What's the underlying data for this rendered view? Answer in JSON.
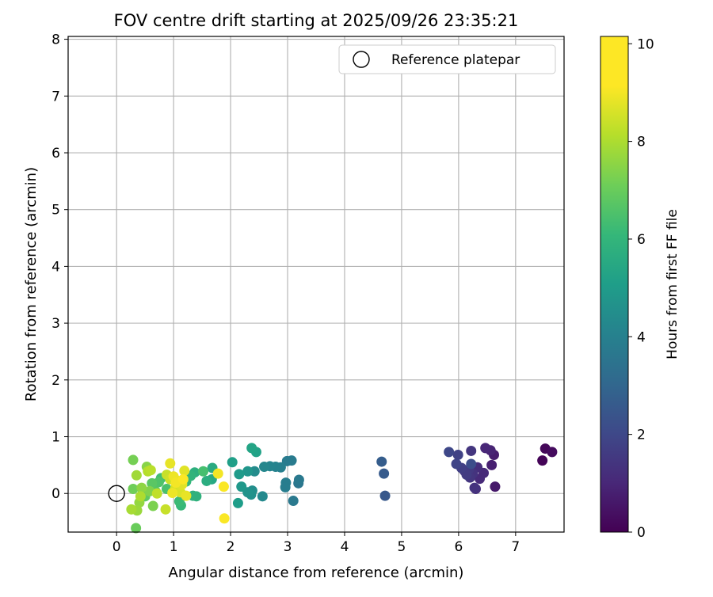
{
  "chart_data": {
    "type": "scatter",
    "title": "FOV centre drift starting at 2025/09/26 23:35:21",
    "xlabel": "Angular distance from reference (arcmin)",
    "ylabel": "Rotation from reference (arcmin)",
    "xlim": [
      -0.85,
      7.85
    ],
    "ylim": [
      -0.68,
      8.05
    ],
    "x_ticks": [
      0,
      1,
      2,
      3,
      4,
      5,
      6,
      7
    ],
    "y_ticks": [
      0,
      1,
      2,
      3,
      4,
      5,
      6,
      7,
      8
    ],
    "grid": true,
    "legend": {
      "placement": "top-right",
      "entries": [
        {
          "label": "Reference platepar",
          "marker": "open-circle"
        }
      ]
    },
    "reference_point": {
      "x": 0,
      "y": 0,
      "label": "Reference platepar"
    },
    "colorbar": {
      "label": "Hours from first FF file",
      "colormap": "viridis",
      "range": [
        0,
        10.15
      ],
      "ticks": [
        0,
        2,
        4,
        6,
        8,
        10
      ]
    },
    "points": [
      {
        "x": 7.47,
        "y": 0.58,
        "c": 0.1
      },
      {
        "x": 7.52,
        "y": 0.79,
        "c": 0.2
      },
      {
        "x": 7.64,
        "y": 0.73,
        "c": 0.3
      },
      {
        "x": 6.64,
        "y": 0.12,
        "c": 0.7
      },
      {
        "x": 6.62,
        "y": 0.68,
        "c": 0.8
      },
      {
        "x": 6.58,
        "y": 0.5,
        "c": 0.9
      },
      {
        "x": 6.56,
        "y": 0.76,
        "c": 1.0
      },
      {
        "x": 6.47,
        "y": 0.8,
        "c": 1.1
      },
      {
        "x": 6.44,
        "y": 0.36,
        "c": 1.2
      },
      {
        "x": 6.37,
        "y": 0.26,
        "c": 1.2
      },
      {
        "x": 6.33,
        "y": 0.46,
        "c": 1.3
      },
      {
        "x": 6.3,
        "y": 0.08,
        "c": 1.4
      },
      {
        "x": 6.28,
        "y": 0.1,
        "c": 1.5
      },
      {
        "x": 6.25,
        "y": 0.35,
        "c": 1.5
      },
      {
        "x": 6.22,
        "y": 0.75,
        "c": 1.6
      },
      {
        "x": 6.2,
        "y": 0.28,
        "c": 1.6
      },
      {
        "x": 6.18,
        "y": 0.42,
        "c": 1.7
      },
      {
        "x": 6.14,
        "y": 0.33,
        "c": 1.8
      },
      {
        "x": 6.1,
        "y": 0.4,
        "c": 1.8
      },
      {
        "x": 6.05,
        "y": 0.45,
        "c": 1.9
      },
      {
        "x": 5.99,
        "y": 0.68,
        "c": 2.0
      },
      {
        "x": 5.96,
        "y": 0.52,
        "c": 2.1
      },
      {
        "x": 5.83,
        "y": 0.73,
        "c": 2.2
      },
      {
        "x": 6.22,
        "y": 0.52,
        "c": 2.4
      },
      {
        "x": 4.71,
        "y": -0.04,
        "c": 2.8
      },
      {
        "x": 4.69,
        "y": 0.35,
        "c": 2.9
      },
      {
        "x": 4.65,
        "y": 0.56,
        "c": 3.0
      },
      {
        "x": 3.19,
        "y": 0.18,
        "c": 4.0
      },
      {
        "x": 3.2,
        "y": 0.24,
        "c": 4.1
      },
      {
        "x": 3.1,
        "y": -0.13,
        "c": 4.1
      },
      {
        "x": 3.07,
        "y": 0.58,
        "c": 4.2
      },
      {
        "x": 2.99,
        "y": 0.57,
        "c": 4.2
      },
      {
        "x": 2.97,
        "y": 0.19,
        "c": 4.3
      },
      {
        "x": 2.96,
        "y": 0.11,
        "c": 4.3
      },
      {
        "x": 2.88,
        "y": 0.46,
        "c": 4.4
      },
      {
        "x": 2.79,
        "y": 0.47,
        "c": 4.5
      },
      {
        "x": 2.69,
        "y": 0.48,
        "c": 4.6
      },
      {
        "x": 2.59,
        "y": 0.47,
        "c": 4.7
      },
      {
        "x": 2.56,
        "y": -0.05,
        "c": 4.8
      },
      {
        "x": 2.42,
        "y": 0.39,
        "c": 4.9
      },
      {
        "x": 2.38,
        "y": 0.05,
        "c": 5.0
      },
      {
        "x": 2.36,
        "y": -0.02,
        "c": 5.1
      },
      {
        "x": 2.3,
        "y": 0.02,
        "c": 5.2
      },
      {
        "x": 2.3,
        "y": 0.39,
        "c": 5.3
      },
      {
        "x": 2.19,
        "y": 0.12,
        "c": 5.4
      },
      {
        "x": 2.15,
        "y": 0.34,
        "c": 5.5
      },
      {
        "x": 2.13,
        "y": -0.17,
        "c": 5.6
      },
      {
        "x": 2.03,
        "y": 0.55,
        "c": 5.7
      },
      {
        "x": 2.45,
        "y": 0.73,
        "c": 5.8
      },
      {
        "x": 2.37,
        "y": 0.8,
        "c": 5.9
      },
      {
        "x": 1.67,
        "y": 0.25,
        "c": 6.1
      },
      {
        "x": 1.68,
        "y": 0.45,
        "c": 6.2
      },
      {
        "x": 1.58,
        "y": 0.22,
        "c": 6.3
      },
      {
        "x": 1.37,
        "y": 0.37,
        "c": 6.4
      },
      {
        "x": 1.4,
        "y": -0.05,
        "c": 6.5
      },
      {
        "x": 1.34,
        "y": -0.04,
        "c": 6.5
      },
      {
        "x": 1.3,
        "y": 0.31,
        "c": 6.6
      },
      {
        "x": 1.22,
        "y": 0.21,
        "c": 6.7
      },
      {
        "x": 1.13,
        "y": -0.21,
        "c": 6.8
      },
      {
        "x": 1.1,
        "y": -0.14,
        "c": 6.9
      },
      {
        "x": 0.78,
        "y": 0.27,
        "c": 7.0
      },
      {
        "x": 1.52,
        "y": 0.39,
        "c": 7.1
      },
      {
        "x": 0.88,
        "y": 0.08,
        "c": 7.2
      },
      {
        "x": 0.74,
        "y": 0.2,
        "c": 7.3
      },
      {
        "x": 0.68,
        "y": 0.04,
        "c": 7.4
      },
      {
        "x": 0.62,
        "y": 0.18,
        "c": 7.5
      },
      {
        "x": 0.5,
        "y": -0.05,
        "c": 7.6
      },
      {
        "x": 0.46,
        "y": 0.01,
        "c": 7.7
      },
      {
        "x": 0.34,
        "y": -0.61,
        "c": 7.8
      },
      {
        "x": 0.29,
        "y": 0.08,
        "c": 7.9
      },
      {
        "x": 0.29,
        "y": 0.59,
        "c": 8.0
      },
      {
        "x": 0.64,
        "y": -0.22,
        "c": 8.1
      },
      {
        "x": 0.58,
        "y": 0.04,
        "c": 8.2
      },
      {
        "x": 0.53,
        "y": 0.47,
        "c": 8.3
      },
      {
        "x": 0.44,
        "y": 0.1,
        "c": 8.4
      },
      {
        "x": 0.4,
        "y": -0.16,
        "c": 8.5
      },
      {
        "x": 0.36,
        "y": -0.3,
        "c": 8.6
      },
      {
        "x": 0.35,
        "y": 0.32,
        "c": 8.7
      },
      {
        "x": 0.26,
        "y": -0.28,
        "c": 8.8
      },
      {
        "x": 0.42,
        "y": -0.05,
        "c": 8.9
      },
      {
        "x": 0.55,
        "y": 0.39,
        "c": 9.0
      },
      {
        "x": 0.6,
        "y": 0.41,
        "c": 9.1
      },
      {
        "x": 0.71,
        "y": 0.0,
        "c": 9.2
      },
      {
        "x": 0.86,
        "y": -0.28,
        "c": 9.3
      },
      {
        "x": 0.88,
        "y": 0.33,
        "c": 9.3
      },
      {
        "x": 0.94,
        "y": 0.25,
        "c": 9.4
      },
      {
        "x": 1.03,
        "y": 0.09,
        "c": 9.5
      },
      {
        "x": 1.08,
        "y": 0.22,
        "c": 9.6
      },
      {
        "x": 1.12,
        "y": 0.02,
        "c": 9.6
      },
      {
        "x": 1.15,
        "y": 0.16,
        "c": 9.7
      },
      {
        "x": 1.19,
        "y": 0.4,
        "c": 9.7
      },
      {
        "x": 1.22,
        "y": -0.04,
        "c": 9.8
      },
      {
        "x": 0.94,
        "y": 0.53,
        "c": 9.8
      },
      {
        "x": 0.98,
        "y": 0.01,
        "c": 9.9
      },
      {
        "x": 1.0,
        "y": 0.3,
        "c": 9.9
      },
      {
        "x": 1.04,
        "y": 0.19,
        "c": 10.0
      },
      {
        "x": 1.78,
        "y": 0.35,
        "c": 10.0
      },
      {
        "x": 1.88,
        "y": 0.12,
        "c": 10.1
      },
      {
        "x": 1.89,
        "y": -0.44,
        "c": 10.1
      },
      {
        "x": 1.17,
        "y": 0.25,
        "c": 10.1
      }
    ]
  }
}
